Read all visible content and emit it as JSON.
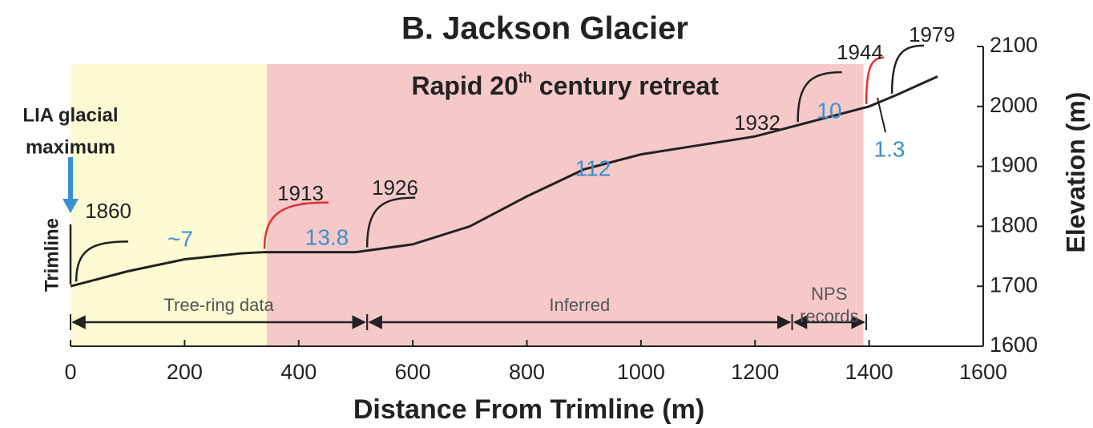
{
  "chart_data": {
    "type": "line",
    "title": "B. Jackson Glacier",
    "x_label": "Distance From Trimline (m)",
    "y_label": "Elevation (m)",
    "x": [
      0,
      100,
      200,
      300,
      340,
      500,
      600,
      700,
      800,
      900,
      1000,
      1100,
      1200,
      1300,
      1400,
      1450,
      1520
    ],
    "values": [
      1700,
      1725,
      1745,
      1755,
      1757,
      1757,
      1770,
      1800,
      1850,
      1895,
      1920,
      1935,
      1950,
      1975,
      2000,
      2020,
      2050
    ],
    "color": "#222222",
    "xlim": [
      0,
      1600
    ],
    "ylim": [
      1600,
      2100
    ],
    "xticks": [
      0,
      200,
      400,
      600,
      800,
      1000,
      1200,
      1400,
      1600
    ],
    "yticks": [
      1600,
      1700,
      1800,
      1900,
      2000,
      2100
    ],
    "regions": [
      {
        "start": 0,
        "end": 344,
        "color": "#fdfbd3"
      },
      {
        "start": 344,
        "end": 1390,
        "color": "#f6c9c9",
        "label": "Rapid 20",
        "sup": "th",
        "label_end": " century retreat"
      }
    ],
    "margins": [
      {
        "year": "1860",
        "x": 10,
        "color": "#222222"
      },
      {
        "year": "1913",
        "x": 340,
        "color": "#e03030"
      },
      {
        "year": "1926",
        "x": 520,
        "color": "#222222"
      },
      {
        "year": "1932",
        "x": 1275,
        "color": "#222222"
      },
      {
        "year": "1944",
        "x": 1395,
        "color": "#e03030"
      },
      {
        "year": "1979",
        "x": 1440,
        "color": "#222222"
      }
    ],
    "rates": [
      "~7",
      "13.8",
      "112",
      "10",
      "1.3"
    ],
    "periods": [
      {
        "label": "Tree-ring data",
        "start": 0,
        "end": 520
      },
      {
        "label": "Inferred",
        "start": 520,
        "end": 1265
      },
      {
        "label": "NPS\nrecords",
        "start": 1265,
        "end": 1395
      }
    ],
    "lia_label": [
      "LIA glacial",
      "maximum"
    ],
    "trimline_label": "Trimline"
  }
}
